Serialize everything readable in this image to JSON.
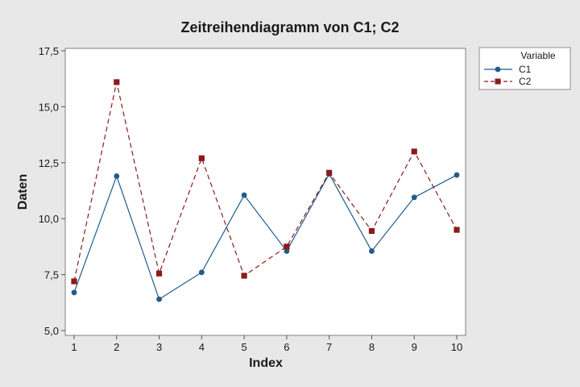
{
  "colors": {
    "background": "#e8e8e8",
    "plot_area": "#ffffff",
    "series_C1": "#1f5c8c",
    "series_C2": "#8b1a1a"
  },
  "chart_data": {
    "type": "line",
    "title": "Zeitreihendiagramm von C1; C2",
    "xlabel": "Index",
    "ylabel": "Daten",
    "x": [
      1,
      2,
      3,
      4,
      5,
      6,
      7,
      8,
      9,
      10
    ],
    "xlim": [
      1,
      10
    ],
    "ylim": [
      5.0,
      17.5
    ],
    "xticks": [
      "1",
      "2",
      "3",
      "4",
      "5",
      "6",
      "7",
      "8",
      "9",
      "10"
    ],
    "yticks": [
      5.0,
      7.5,
      10.0,
      12.5,
      15.0,
      17.5
    ],
    "ytick_labels": [
      "5,0",
      "7,5",
      "10,0",
      "12,5",
      "15,0",
      "17,5"
    ],
    "grid": false,
    "legend": {
      "title": "Variable",
      "placement": "right"
    },
    "series": [
      {
        "name": "C1",
        "marker": "circle",
        "line": "solid",
        "values": [
          6.7,
          11.9,
          6.4,
          7.6,
          11.05,
          8.55,
          12.0,
          8.55,
          10.95,
          11.95
        ]
      },
      {
        "name": "C2",
        "marker": "square",
        "line": "dashed",
        "values": [
          7.2,
          16.1,
          7.55,
          12.7,
          7.45,
          8.75,
          12.05,
          9.45,
          13.0,
          9.5
        ]
      }
    ]
  }
}
